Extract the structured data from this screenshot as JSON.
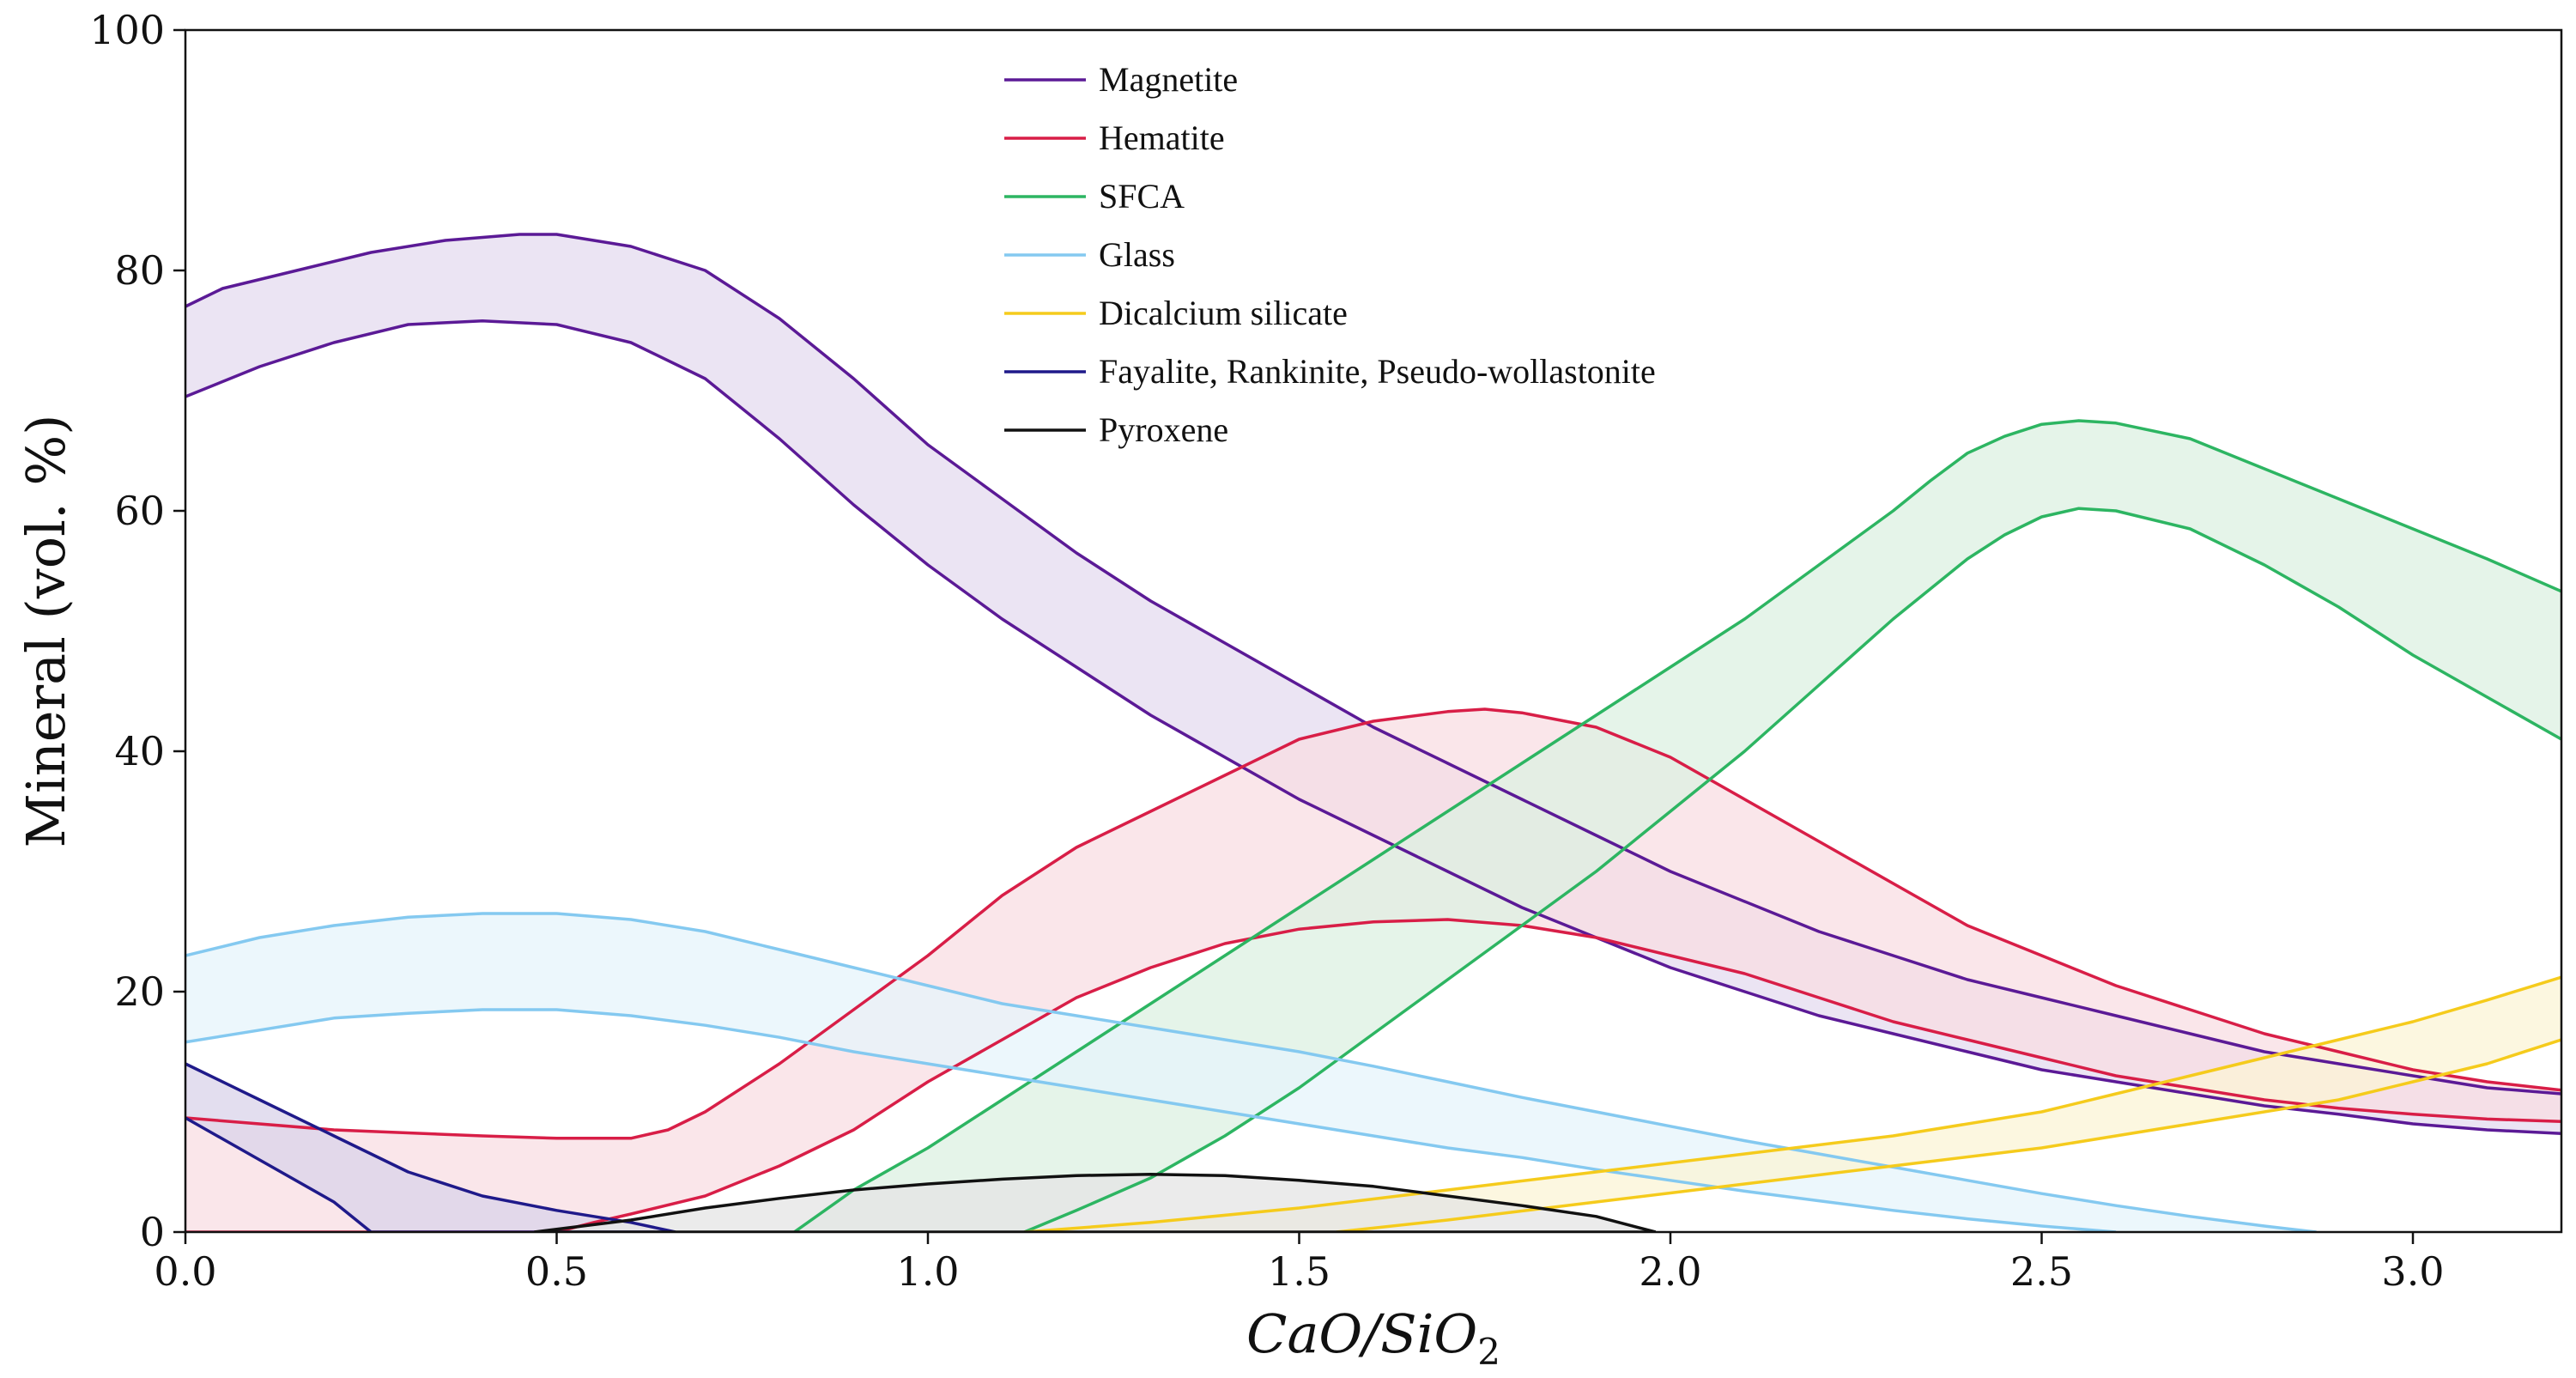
{
  "chart_data": {
    "type": "area",
    "title": "",
    "xlabel": "CaO/SiO2",
    "xlabel_main": "CaO/SiO",
    "xlabel_sub": "2",
    "ylabel": "Mineral (vol. %)",
    "xlim": [
      0,
      3.2
    ],
    "ylim": [
      0,
      100
    ],
    "xticks": [
      0.0,
      0.5,
      1.0,
      1.5,
      2.0,
      2.5,
      3.0
    ],
    "xtick_labels": [
      "0.0",
      "0.5",
      "1.0",
      "1.5",
      "2.0",
      "2.5",
      "3.0"
    ],
    "yticks": [
      0,
      20,
      40,
      60,
      80,
      100
    ],
    "ytick_labels": [
      "0",
      "20",
      "40",
      "60",
      "80",
      "100"
    ],
    "grid": false,
    "legend_position": "top-center",
    "series": [
      {
        "name": "Magnetite",
        "color": "#5b1a96",
        "fill": "#e4dbef",
        "upper": [
          [
            0,
            77
          ],
          [
            0.05,
            78.5
          ],
          [
            0.15,
            80
          ],
          [
            0.25,
            81.5
          ],
          [
            0.35,
            82.5
          ],
          [
            0.45,
            83
          ],
          [
            0.5,
            83
          ],
          [
            0.6,
            82
          ],
          [
            0.7,
            80
          ],
          [
            0.8,
            76
          ],
          [
            0.9,
            71
          ],
          [
            1.0,
            65.5
          ],
          [
            1.1,
            61
          ],
          [
            1.2,
            56.5
          ],
          [
            1.3,
            52.5
          ],
          [
            1.4,
            49
          ],
          [
            1.5,
            45.5
          ],
          [
            1.6,
            42
          ],
          [
            1.7,
            39
          ],
          [
            1.8,
            36
          ],
          [
            1.9,
            33
          ],
          [
            2.0,
            30
          ],
          [
            2.1,
            27.5
          ],
          [
            2.2,
            25
          ],
          [
            2.3,
            23
          ],
          [
            2.4,
            21
          ],
          [
            2.5,
            19.5
          ],
          [
            2.6,
            18
          ],
          [
            2.7,
            16.5
          ],
          [
            2.8,
            15
          ],
          [
            2.9,
            14
          ],
          [
            3.0,
            13
          ],
          [
            3.1,
            12
          ],
          [
            3.2,
            11.5
          ]
        ],
        "lower": [
          [
            0,
            69.5
          ],
          [
            0.1,
            72
          ],
          [
            0.2,
            74
          ],
          [
            0.3,
            75.5
          ],
          [
            0.4,
            75.8
          ],
          [
            0.5,
            75.5
          ],
          [
            0.6,
            74
          ],
          [
            0.7,
            71
          ],
          [
            0.8,
            66
          ],
          [
            0.9,
            60.5
          ],
          [
            1.0,
            55.5
          ],
          [
            1.1,
            51
          ],
          [
            1.2,
            47
          ],
          [
            1.3,
            43
          ],
          [
            1.4,
            39.5
          ],
          [
            1.5,
            36
          ],
          [
            1.6,
            33
          ],
          [
            1.7,
            30
          ],
          [
            1.8,
            27
          ],
          [
            1.9,
            24.5
          ],
          [
            2.0,
            22
          ],
          [
            2.1,
            20
          ],
          [
            2.2,
            18
          ],
          [
            2.3,
            16.5
          ],
          [
            2.4,
            15
          ],
          [
            2.5,
            13.5
          ],
          [
            2.6,
            12.5
          ],
          [
            2.7,
            11.5
          ],
          [
            2.8,
            10.5
          ],
          [
            2.9,
            9.8
          ],
          [
            3.0,
            9
          ],
          [
            3.1,
            8.5
          ],
          [
            3.2,
            8.2
          ]
        ]
      },
      {
        "name": "Hematite",
        "color": "#d81e47",
        "fill": "#f8dde3",
        "upper": [
          [
            0,
            9.5
          ],
          [
            0.2,
            8.5
          ],
          [
            0.4,
            8
          ],
          [
            0.5,
            7.8
          ],
          [
            0.6,
            7.8
          ],
          [
            0.65,
            8.5
          ],
          [
            0.7,
            10
          ],
          [
            0.8,
            14
          ],
          [
            0.9,
            18.5
          ],
          [
            1.0,
            23
          ],
          [
            1.1,
            28
          ],
          [
            1.2,
            32
          ],
          [
            1.3,
            35
          ],
          [
            1.4,
            38
          ],
          [
            1.5,
            41
          ],
          [
            1.6,
            42.5
          ],
          [
            1.7,
            43.3
          ],
          [
            1.75,
            43.5
          ],
          [
            1.8,
            43.2
          ],
          [
            1.9,
            42
          ],
          [
            2.0,
            39.5
          ],
          [
            2.1,
            36
          ],
          [
            2.2,
            32.5
          ],
          [
            2.3,
            29
          ],
          [
            2.4,
            25.5
          ],
          [
            2.5,
            23
          ],
          [
            2.6,
            20.5
          ],
          [
            2.7,
            18.5
          ],
          [
            2.8,
            16.5
          ],
          [
            2.9,
            15
          ],
          [
            3.0,
            13.5
          ],
          [
            3.1,
            12.5
          ],
          [
            3.2,
            11.8
          ]
        ],
        "lower": [
          [
            0,
            0
          ],
          [
            0.5,
            0
          ],
          [
            0.55,
            0.8
          ],
          [
            0.6,
            1.5
          ],
          [
            0.7,
            3
          ],
          [
            0.8,
            5.5
          ],
          [
            0.9,
            8.5
          ],
          [
            1.0,
            12.5
          ],
          [
            1.1,
            16
          ],
          [
            1.2,
            19.5
          ],
          [
            1.3,
            22
          ],
          [
            1.4,
            24
          ],
          [
            1.5,
            25.2
          ],
          [
            1.6,
            25.8
          ],
          [
            1.7,
            26
          ],
          [
            1.8,
            25.5
          ],
          [
            1.9,
            24.5
          ],
          [
            2.0,
            23
          ],
          [
            2.1,
            21.5
          ],
          [
            2.2,
            19.5
          ],
          [
            2.3,
            17.5
          ],
          [
            2.4,
            16
          ],
          [
            2.5,
            14.5
          ],
          [
            2.6,
            13
          ],
          [
            2.7,
            12
          ],
          [
            2.8,
            11
          ],
          [
            2.9,
            10.3
          ],
          [
            3.0,
            9.8
          ],
          [
            3.1,
            9.4
          ],
          [
            3.2,
            9.2
          ]
        ]
      },
      {
        "name": "SFCA",
        "color": "#2db562",
        "fill": "#dcf0e2",
        "upper": [
          [
            0.82,
            0
          ],
          [
            0.9,
            3.5
          ],
          [
            1.0,
            7
          ],
          [
            1.1,
            11
          ],
          [
            1.2,
            15
          ],
          [
            1.3,
            19
          ],
          [
            1.4,
            23
          ],
          [
            1.5,
            27
          ],
          [
            1.6,
            31
          ],
          [
            1.7,
            35
          ],
          [
            1.8,
            39
          ],
          [
            1.9,
            43
          ],
          [
            2.0,
            47
          ],
          [
            2.1,
            51
          ],
          [
            2.2,
            55.5
          ],
          [
            2.3,
            60
          ],
          [
            2.35,
            62.5
          ],
          [
            2.4,
            64.8
          ],
          [
            2.45,
            66.2
          ],
          [
            2.5,
            67.2
          ],
          [
            2.55,
            67.5
          ],
          [
            2.6,
            67.3
          ],
          [
            2.7,
            66
          ],
          [
            2.8,
            63.5
          ],
          [
            2.9,
            61
          ],
          [
            3.0,
            58.5
          ],
          [
            3.1,
            56
          ],
          [
            3.2,
            53.3
          ]
        ],
        "lower": [
          [
            1.13,
            0
          ],
          [
            1.2,
            1.8
          ],
          [
            1.3,
            4.5
          ],
          [
            1.4,
            8
          ],
          [
            1.5,
            12
          ],
          [
            1.6,
            16.5
          ],
          [
            1.7,
            21
          ],
          [
            1.8,
            25.5
          ],
          [
            1.9,
            30
          ],
          [
            2.0,
            35
          ],
          [
            2.1,
            40
          ],
          [
            2.2,
            45.5
          ],
          [
            2.3,
            51
          ],
          [
            2.4,
            56
          ],
          [
            2.45,
            58
          ],
          [
            2.5,
            59.5
          ],
          [
            2.55,
            60.2
          ],
          [
            2.6,
            60
          ],
          [
            2.7,
            58.5
          ],
          [
            2.8,
            55.5
          ],
          [
            2.9,
            52
          ],
          [
            3.0,
            48
          ],
          [
            3.1,
            44.5
          ],
          [
            3.2,
            41
          ]
        ]
      },
      {
        "name": "Glass",
        "color": "#84c9f0",
        "fill": "#e5f4fb",
        "upper": [
          [
            0,
            23
          ],
          [
            0.1,
            24.5
          ],
          [
            0.2,
            25.5
          ],
          [
            0.3,
            26.2
          ],
          [
            0.4,
            26.5
          ],
          [
            0.5,
            26.5
          ],
          [
            0.6,
            26
          ],
          [
            0.7,
            25
          ],
          [
            0.8,
            23.5
          ],
          [
            0.9,
            22
          ],
          [
            1.0,
            20.5
          ],
          [
            1.1,
            19
          ],
          [
            1.2,
            18
          ],
          [
            1.3,
            17
          ],
          [
            1.4,
            16
          ],
          [
            1.5,
            15
          ],
          [
            1.6,
            13.8
          ],
          [
            1.7,
            12.5
          ],
          [
            1.8,
            11.2
          ],
          [
            1.9,
            10
          ],
          [
            2.0,
            8.8
          ],
          [
            2.1,
            7.6
          ],
          [
            2.2,
            6.5
          ],
          [
            2.3,
            5.4
          ],
          [
            2.4,
            4.3
          ],
          [
            2.5,
            3.2
          ],
          [
            2.6,
            2.2
          ],
          [
            2.7,
            1.3
          ],
          [
            2.8,
            0.5
          ],
          [
            2.87,
            0
          ]
        ],
        "lower": [
          [
            0,
            15.8
          ],
          [
            0.1,
            16.8
          ],
          [
            0.2,
            17.8
          ],
          [
            0.3,
            18.2
          ],
          [
            0.4,
            18.5
          ],
          [
            0.5,
            18.5
          ],
          [
            0.6,
            18
          ],
          [
            0.7,
            17.2
          ],
          [
            0.8,
            16.2
          ],
          [
            0.9,
            15
          ],
          [
            1.0,
            14
          ],
          [
            1.1,
            13
          ],
          [
            1.2,
            12
          ],
          [
            1.3,
            11
          ],
          [
            1.4,
            10
          ],
          [
            1.5,
            9
          ],
          [
            1.6,
            8
          ],
          [
            1.7,
            7
          ],
          [
            1.8,
            6.2
          ],
          [
            1.9,
            5.2
          ],
          [
            2.0,
            4.3
          ],
          [
            2.1,
            3.4
          ],
          [
            2.2,
            2.6
          ],
          [
            2.3,
            1.8
          ],
          [
            2.4,
            1.1
          ],
          [
            2.5,
            0.5
          ],
          [
            2.6,
            0
          ]
        ]
      },
      {
        "name": "Dicalcium silicate",
        "color": "#f5cb1c",
        "fill": "#fbf4d6",
        "upper": [
          [
            1.13,
            0
          ],
          [
            1.3,
            0.8
          ],
          [
            1.5,
            2
          ],
          [
            1.7,
            3.5
          ],
          [
            1.9,
            5
          ],
          [
            2.1,
            6.5
          ],
          [
            2.3,
            8
          ],
          [
            2.5,
            10
          ],
          [
            2.6,
            11.5
          ],
          [
            2.7,
            13
          ],
          [
            2.8,
            14.5
          ],
          [
            2.9,
            16
          ],
          [
            3.0,
            17.5
          ],
          [
            3.1,
            19.3
          ],
          [
            3.2,
            21.2
          ]
        ],
        "lower": [
          [
            1.55,
            0
          ],
          [
            1.7,
            1
          ],
          [
            1.9,
            2.5
          ],
          [
            2.1,
            4
          ],
          [
            2.3,
            5.5
          ],
          [
            2.5,
            7
          ],
          [
            2.7,
            9
          ],
          [
            2.9,
            11
          ],
          [
            3.0,
            12.5
          ],
          [
            3.1,
            14
          ],
          [
            3.2,
            16
          ]
        ]
      },
      {
        "name": "Fayalite, Rankinite, Pseudo-wollastonite",
        "color": "#1f1a8a",
        "fill": "#d9d3ea",
        "upper": [
          [
            0,
            14
          ],
          [
            0.1,
            11
          ],
          [
            0.2,
            8
          ],
          [
            0.3,
            5
          ],
          [
            0.4,
            3
          ],
          [
            0.5,
            1.8
          ],
          [
            0.6,
            0.8
          ],
          [
            0.66,
            0
          ]
        ],
        "lower": [
          [
            0,
            9.5
          ],
          [
            0.1,
            6
          ],
          [
            0.2,
            2.5
          ],
          [
            0.25,
            0
          ],
          [
            0.66,
            0
          ]
        ]
      },
      {
        "name": "Pyroxene",
        "color": "#111111",
        "fill": "#e4e4e4",
        "upper": [
          [
            0.47,
            0
          ],
          [
            0.6,
            1
          ],
          [
            0.7,
            2
          ],
          [
            0.8,
            2.8
          ],
          [
            0.9,
            3.5
          ],
          [
            1.0,
            4
          ],
          [
            1.1,
            4.4
          ],
          [
            1.2,
            4.7
          ],
          [
            1.3,
            4.8
          ],
          [
            1.4,
            4.7
          ],
          [
            1.5,
            4.3
          ],
          [
            1.6,
            3.8
          ],
          [
            1.7,
            3
          ],
          [
            1.8,
            2.2
          ],
          [
            1.9,
            1.3
          ],
          [
            1.98,
            0
          ]
        ],
        "lower": [
          [
            0.47,
            0
          ],
          [
            1.98,
            0
          ]
        ]
      }
    ]
  }
}
